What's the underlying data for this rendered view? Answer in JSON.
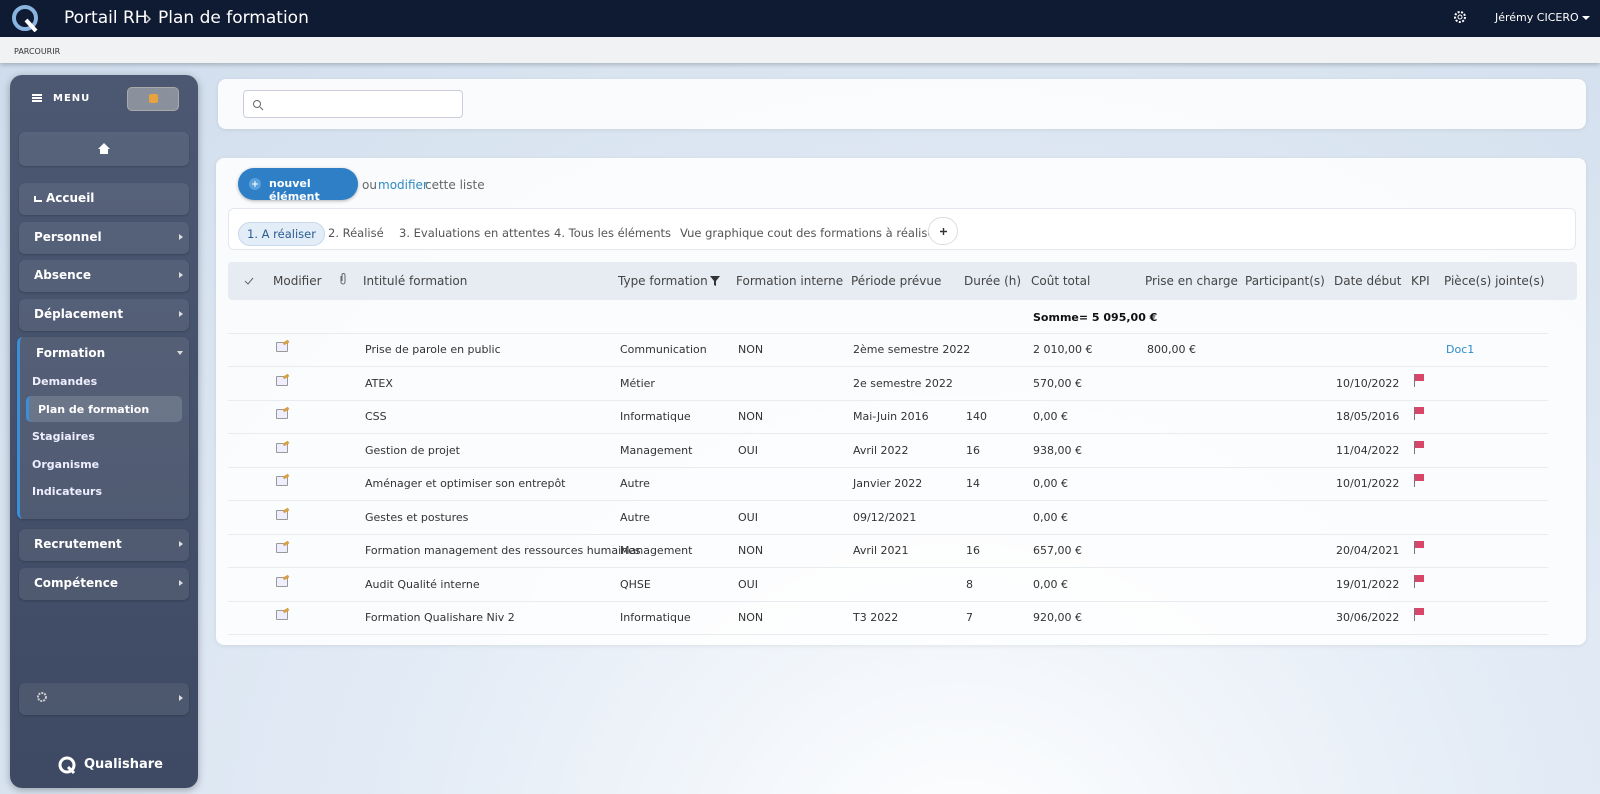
{
  "header": {
    "breadcrumb": [
      "Portail RH",
      "Plan de formation"
    ],
    "user": "Jérémy CICERO"
  },
  "subbar": "PARCOURIR",
  "sidebar": {
    "menu": "MENU",
    "items": [
      {
        "label": "Accueil"
      },
      {
        "label": "Personnel",
        "arrow": true
      },
      {
        "label": "Absence",
        "arrow": true
      },
      {
        "label": "Déplacement",
        "arrow": true
      },
      {
        "label": "Formation",
        "expanded": true,
        "children": [
          "Demandes",
          "Plan de formation",
          "Stagiaires",
          "Organisme",
          "Indicateurs"
        ],
        "active_child": 1
      },
      {
        "label": "Recrutement",
        "arrow": true
      },
      {
        "label": "Compétence",
        "arrow": true
      }
    ],
    "brand": "Qualishare"
  },
  "toolbar": {
    "new_button": "nouvel élément",
    "or": "ou",
    "edit_link": "modifier",
    "suffix": "cette liste"
  },
  "tabs": {
    "items": [
      "1. A réaliser",
      "2. Réalisé",
      "3. Evaluations en attentes",
      "4. Tous les éléments",
      "Vue graphique cout des formations à réaliser"
    ],
    "active": 0
  },
  "table": {
    "columns": {
      "edit": "Modifier",
      "title": "Intitulé formation",
      "type": "Type formation",
      "internal": "Formation interne",
      "period": "Période prévue",
      "duration": "Durée (h)",
      "cost": "Coût total",
      "coverage": "Prise en charge",
      "participants": "Participant(s)",
      "start": "Date début",
      "kpi": "KPI",
      "attachment": "Pièce(s) jointe(s)"
    },
    "sum": "Somme= 5 095,00 €",
    "rows": [
      {
        "title": "Prise de parole en public",
        "type": "Communication",
        "internal": "NON",
        "period": "2ème semestre 2022",
        "cost": "2 010,00 €",
        "coverage": "800,00 €",
        "attachment": "Doc1"
      },
      {
        "title": "ATEX",
        "type": "Métier",
        "period": "2e semestre 2022",
        "cost": "570,00 €",
        "start": "10/10/2022",
        "kpi": true
      },
      {
        "title": "CSS",
        "type": "Informatique",
        "internal": "NON",
        "period": "Mai-Juin 2016",
        "duration": 140,
        "cost": "0,00 €",
        "start": "18/05/2016",
        "kpi": true
      },
      {
        "title": "Gestion de projet",
        "type": "Management",
        "internal": "OUI",
        "period": "Avril 2022",
        "duration": 16,
        "cost": "938,00 €",
        "start": "11/04/2022",
        "kpi": true
      },
      {
        "title": "Aménager et optimiser son entrepôt",
        "type": "Autre",
        "period": "Janvier 2022",
        "duration": 14,
        "cost": "0,00 €",
        "start": "10/01/2022",
        "kpi": true
      },
      {
        "title": "Gestes et postures",
        "type": "Autre",
        "internal": "OUI",
        "period": "09/12/2021",
        "cost": "0,00 €"
      },
      {
        "title": "Formation management des ressources humaines",
        "type": "Management",
        "internal": "NON",
        "period": "Avril 2021",
        "duration": 16,
        "cost": "657,00 €",
        "start": "20/04/2021",
        "kpi": true
      },
      {
        "title": "Audit Qualité interne",
        "type": "QHSE",
        "internal": "OUI",
        "duration": 8,
        "cost": "0,00 €",
        "start": "19/01/2022",
        "kpi": true
      },
      {
        "title": "Formation Qualishare Niv 2",
        "type": "Informatique",
        "internal": "NON",
        "period": "T3 2022",
        "duration": 7,
        "cost": "920,00 €",
        "start": "30/06/2022",
        "kpi": true
      }
    ]
  }
}
